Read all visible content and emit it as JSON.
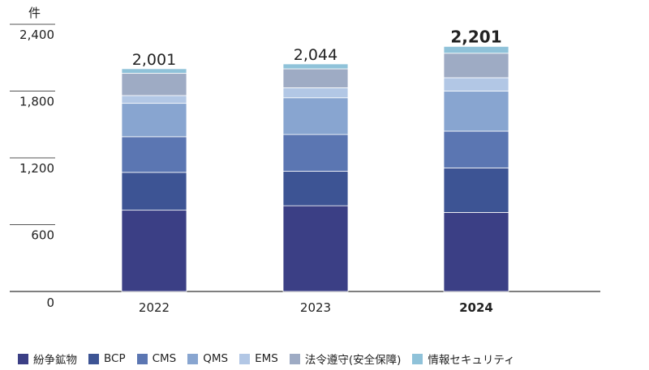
{
  "chart_data": {
    "type": "bar",
    "stacked": true,
    "unit_label": "件",
    "categories": [
      "2022",
      "2023",
      "2024"
    ],
    "highlight_category": "2024",
    "totals": [
      "2,001",
      "2,044",
      "2,201"
    ],
    "y_ticks": [
      "0",
      "600",
      "1,200",
      "1,800",
      "2,400"
    ],
    "ylim": [
      0,
      2400
    ],
    "series": [
      {
        "name": "紛争鉱物",
        "color": "#3b3f85",
        "values": [
          730,
          770,
          710
        ]
      },
      {
        "name": "BCP",
        "color": "#3d5494",
        "values": [
          340,
          310,
          400
        ]
      },
      {
        "name": "CMS",
        "color": "#5b76b2",
        "values": [
          320,
          330,
          330
        ]
      },
      {
        "name": "QMS",
        "color": "#88a5d0",
        "values": [
          300,
          330,
          360
        ]
      },
      {
        "name": "EMS",
        "color": "#b2c7e5",
        "values": [
          70,
          90,
          120
        ]
      },
      {
        "name": "法令遵守(安全保障)",
        "color": "#9eabc4",
        "values": [
          200,
          170,
          220
        ]
      },
      {
        "name": "情報セキュリティ",
        "color": "#8fc2d9",
        "values": [
          41,
          44,
          61
        ]
      }
    ]
  }
}
